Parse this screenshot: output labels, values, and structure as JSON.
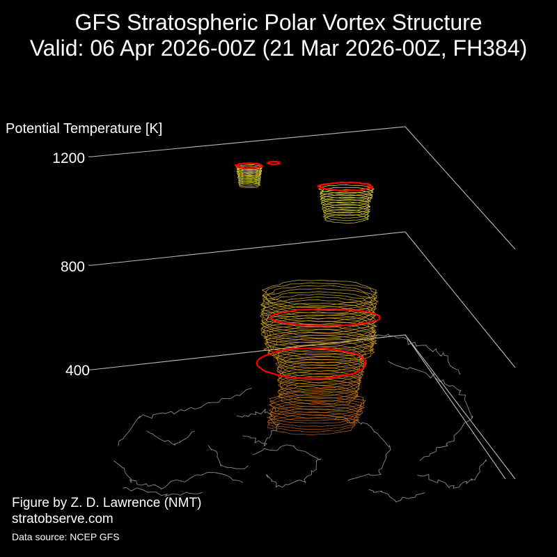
{
  "title_line1": "GFS Stratospheric Polar Vortex Structure",
  "title_line2": "Valid: 06 Apr 2026-00Z  (21 Mar 2026-00Z, FH384)",
  "credits": {
    "author": "Figure by Z. D. Lawrence (NMT)",
    "site": "stratobserve.com",
    "source": "Data source: NCEP GFS"
  },
  "chart_data": {
    "type": "3d-isosurface",
    "zlabel": "Potential Temperature [K]",
    "zticks": [
      400,
      800,
      1200
    ],
    "colors": {
      "background": "#000000",
      "coastlines": "#8a8a8a",
      "axis_frame": "#bbbbbb",
      "vortex_edge": "#ff0000",
      "low_levels": "#b85a10",
      "mid_levels": "#e0a010",
      "high_levels": "#e8e030"
    }
  }
}
